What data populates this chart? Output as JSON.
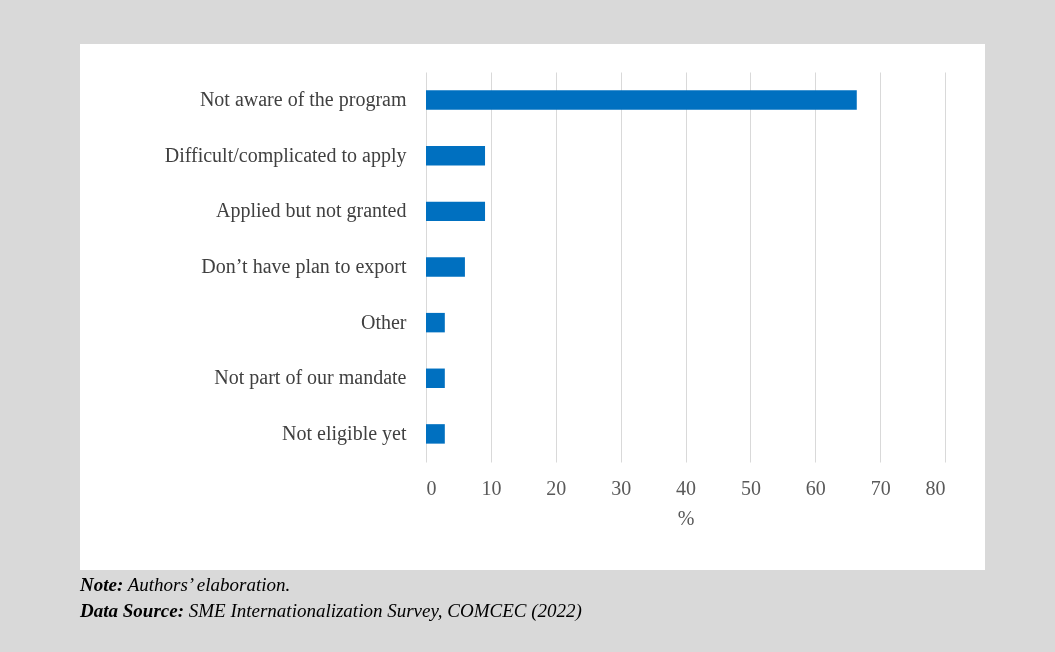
{
  "chart_data": {
    "type": "bar",
    "orientation": "horizontal",
    "categories": [
      "Not aware of the program",
      "Difficult/complicated to apply",
      "Applied but not granted",
      "Don’t have plan to export",
      "Other",
      "Not part of our mandate",
      "Not eligible yet"
    ],
    "values": [
      66.4,
      9.1,
      9.1,
      6.0,
      2.9,
      2.9,
      2.9
    ],
    "color": "#0070c0",
    "xlabel": "%",
    "xlim": [
      0,
      80
    ],
    "xticks": [
      0,
      10,
      20,
      30,
      40,
      50,
      60,
      70,
      80
    ],
    "grid": "x",
    "annotations": [
      "Note: Authors’ elaboration.",
      "Data Source: SME Internationalization Survey, COMCEC (2022)"
    ]
  }
}
